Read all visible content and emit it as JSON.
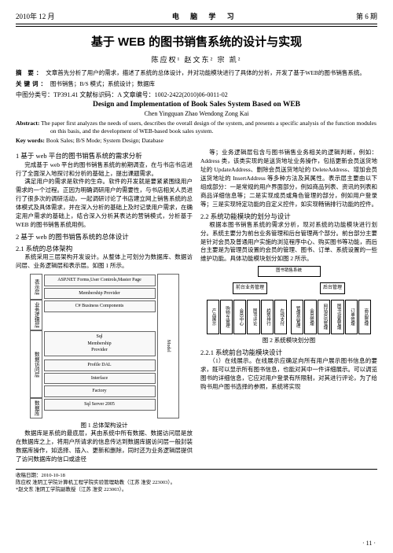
{
  "header": {
    "left": "2010年 12 月",
    "center": "电 脑 学 习",
    "right": "第 6 期"
  },
  "title_cn": "基于 WEB 的图书销售系统的设计与实现",
  "authors_cn": "陈应权¹   赵文东²   宗 凯²",
  "abstract_cn_label": "摘  要：",
  "abstract_cn": "文章首先分析了用户的需求，描述了系统的总体设计，并对功能模块进行了具体的分析，开发了基于WEB的图书销售系统。",
  "keywords_cn_label": "关键词：",
  "keywords_cn": "图书销售；B/S 模式；系统设计；数据库",
  "class_no": "中图分类号：TP391.41        文献标识码：A        文章编号：1002-2422(2010)06-0011-02",
  "title_en": "Design and Implementation of Book Sales System Based on WEB",
  "authors_en": "Chen Yingquan    Zhao Wendong    Zong Kai",
  "abstract_en_label": "Abstract:",
  "abstract_en": "The paper first analyzes the needs of users, describes the overall design of the system, and presents a specific analysis of the function modules on this basis, and the development of WEB-based book sales system.",
  "keywords_en_label": "Key words:",
  "keywords_en": "Book Sales; B/S Mode; System Design; Database",
  "left_col": {
    "s1_h": "1  基于 web 平台的图书销售系统的需求分析",
    "s1_p1": "完成基于 web 平台的图书销售系统的前期调查，在与书店书店进行了全面深入地探讨和分析的基础上，提出课题需求。",
    "s1_p2": "满足用户的需求是软件的生命。软件的开发就是要紧紧围绕用户需求的一个过程。正因为明确调研用户的需要性，与书店相关人员进行了很多次的调研活动，一起调研讨论了书店建立网上销售系统的总体模式及具体需求，并在深入分析的基础上及时记录用户需求，在确定用户需求的基础上，结合深入分析其表达的营销模式，分析基于 WEB 的图书销售系统用例。",
    "s2_h": "2  基于 web 的图书销售系统的总体设计",
    "s21_h": "2.1  系统的总体架构",
    "s21_p": "系统采用三层架构开发设计。从整体上可划分为数据库、数据访问层、业务逻辑层和表示层。如图 1 所示。",
    "fig1_caption": "图 1  总体架构设计",
    "s_db_p1": "数据库是系统的最底层，其由系统中所有数据、数据访问层是放在数据库之上，将用户所请求的信息传达到数据库据访问层一般封装数据库操作，如选择、插入、更新和删除，同时还为业务逻辑层提供了访问数据库的信口或途径"
  },
  "right_col": {
    "r_p1": "等；业务逻辑层包含与图书销售业务相关的逻辑判断，例如：Address 类，该类实现的是送货地址业务操作，包括更新会员送货地址的 UpdateAddress、删除会员送货地址的 DeleteAddress、增加会员送货地址的 InsertAddress 等多种方法及其属性。表示层主要由以下组成部分：一是常规的用户界面部分，例如商品列表、资讯的列表和商品详细信息等；二是实现成员或角色管理的部分，例如用户登录等；三是实现特定功能的自定义控件，如实现畅销排行功能的控件。",
    "s22_h": "2.2  系统功能模块的划分与设计",
    "s22_p1": "根据本图书销售系统的需求分析，现对系统的功能模块进行划分。系统主要分为前台业务管理和后台管理两个部分。前台部分主要是针对会员及普通用户实施的浏览程序中心、购买图书等功能，而后台主要是为管理员设置的会员的管理、图书、订单、系统设置的一些维护功能。具体功能模块划分如图 2 所示。",
    "fig2_caption": "图 2  系统模块划分图",
    "s221_h": "2.2.1  系统前台功能模块设计",
    "s221_p": "（1）在线展示。在线展示应确足向所有用户展示图书信息的要求，既可以显示所有图书信息，也能对其中一件详细展示。可以调览图书的详细信息，它应对用户登录有所限制，对其进行评论，为了给购书用户图书选择的参照，系统将实现"
  },
  "arch": {
    "rows": [
      "表示层",
      "业务逻辑层",
      "数据访问层",
      "数据库"
    ],
    "r1": "ASP.NET Forms,User Controls,Master Page",
    "r1b": "Membership Provider",
    "r2": "C# Business Components",
    "r3_left": "Sql\nMembership\nProvider",
    "r3_r1": "Profile DAL",
    "r3_r2": "Interface",
    "r3_r3": "Factory",
    "r4": "Sql Server 2005",
    "side": "Model"
  },
  "tree": {
    "root": "图书销售系统",
    "mid": [
      "前台业务管理",
      "后台管理"
    ],
    "leaves_left": [
      "产品展示",
      "购物车管理",
      "会员中心",
      "图书评论",
      "趋势排行",
      "在线支付"
    ],
    "leaves_right": [
      "管理员管理",
      "会员管理",
      "网站资讯管理",
      "图书设置管理",
      "订单管理",
      "商品管理"
    ]
  },
  "footer": {
    "l1": "收稿日期：2010-10-18",
    "l2": "陈应权  淮阴工学院计算机工程学院实验管理助教（江苏 淮安 223003）。",
    "l3": "*赵文东  淮阴工学院副教授（江苏 淮安 223003）。"
  },
  "page_num": "· 11 ·",
  "colors": {
    "text": "#000000",
    "bg": "#ffffff",
    "border": "#666666"
  }
}
